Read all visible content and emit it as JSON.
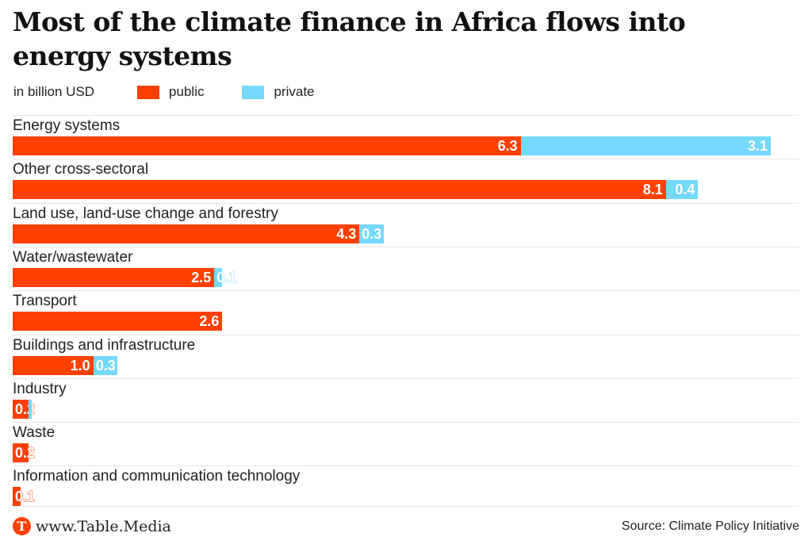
{
  "chart_data": {
    "type": "bar",
    "stacked": true,
    "orientation": "horizontal",
    "title": "Most of the climate finance in Africa flows into energy systems",
    "unit_label": "in billion USD",
    "legend": [
      {
        "name": "public",
        "color": "#ff4000"
      },
      {
        "name": "private",
        "color": "#75d9fc"
      }
    ],
    "legend_placement": "top-left",
    "categories": [
      "Energy systems",
      "Other cross-sectoral",
      "Land use, land-use change and forestry",
      "Water/wastewater",
      "Transport",
      "Buildings and infrastructure",
      "Industry",
      "Waste",
      "Information and communication technology"
    ],
    "series": [
      {
        "name": "public",
        "values": [
          6.3,
          8.1,
          4.3,
          2.5,
          2.6,
          1.0,
          0.2,
          0.2,
          0.1
        ],
        "labels": [
          "6.3",
          "8.1",
          "4.3",
          "2.5",
          "2.6",
          "1.0",
          "0.2",
          "0.2",
          "0.1"
        ]
      },
      {
        "name": "private",
        "values": [
          3.1,
          0.4,
          0.3,
          0.1,
          0,
          0.3,
          0.04,
          0,
          0
        ],
        "labels": [
          "3.1",
          "0.4",
          "0.3",
          "0.1",
          null,
          "0.3",
          null,
          null,
          null
        ]
      }
    ],
    "xlim": [
      0,
      9.7
    ],
    "grid": false
  },
  "footer": {
    "brand": "www.Table.Media",
    "logo_letter": "T",
    "source": "Source: Climate Policy Initiative"
  }
}
